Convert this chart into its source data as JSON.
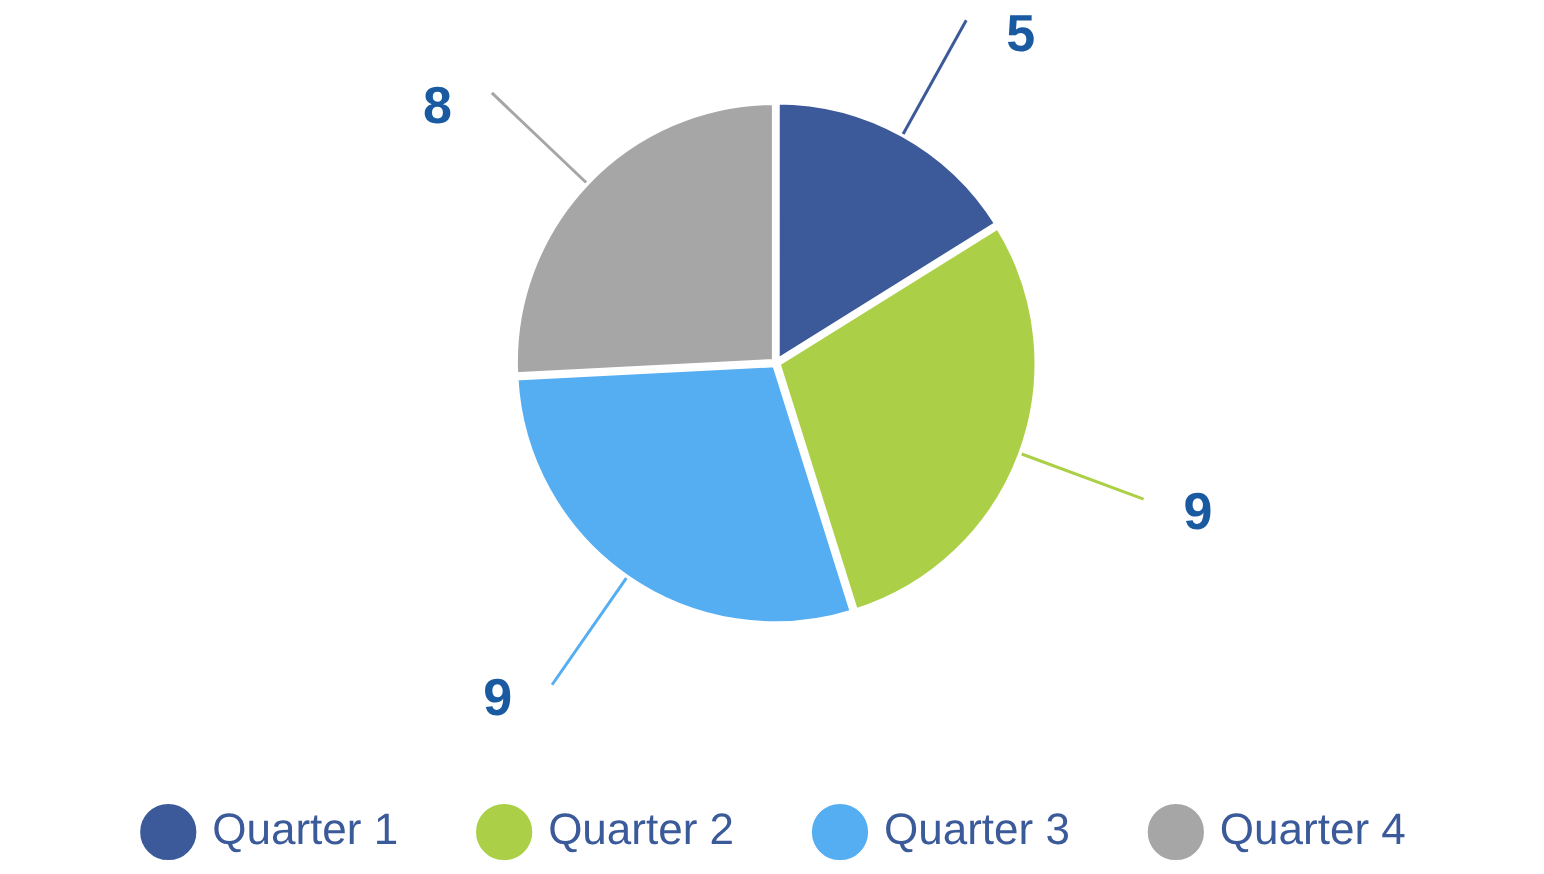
{
  "chart_data": {
    "type": "pie",
    "categories": [
      "Quarter 1",
      "Quarter 2",
      "Quarter 3",
      "Quarter 4"
    ],
    "values": [
      5,
      9,
      9,
      8
    ],
    "colors": [
      "#3c5a99",
      "#abd047",
      "#55aef2",
      "#a6a6a6"
    ],
    "data_labels": true,
    "legend": "bottom"
  }
}
